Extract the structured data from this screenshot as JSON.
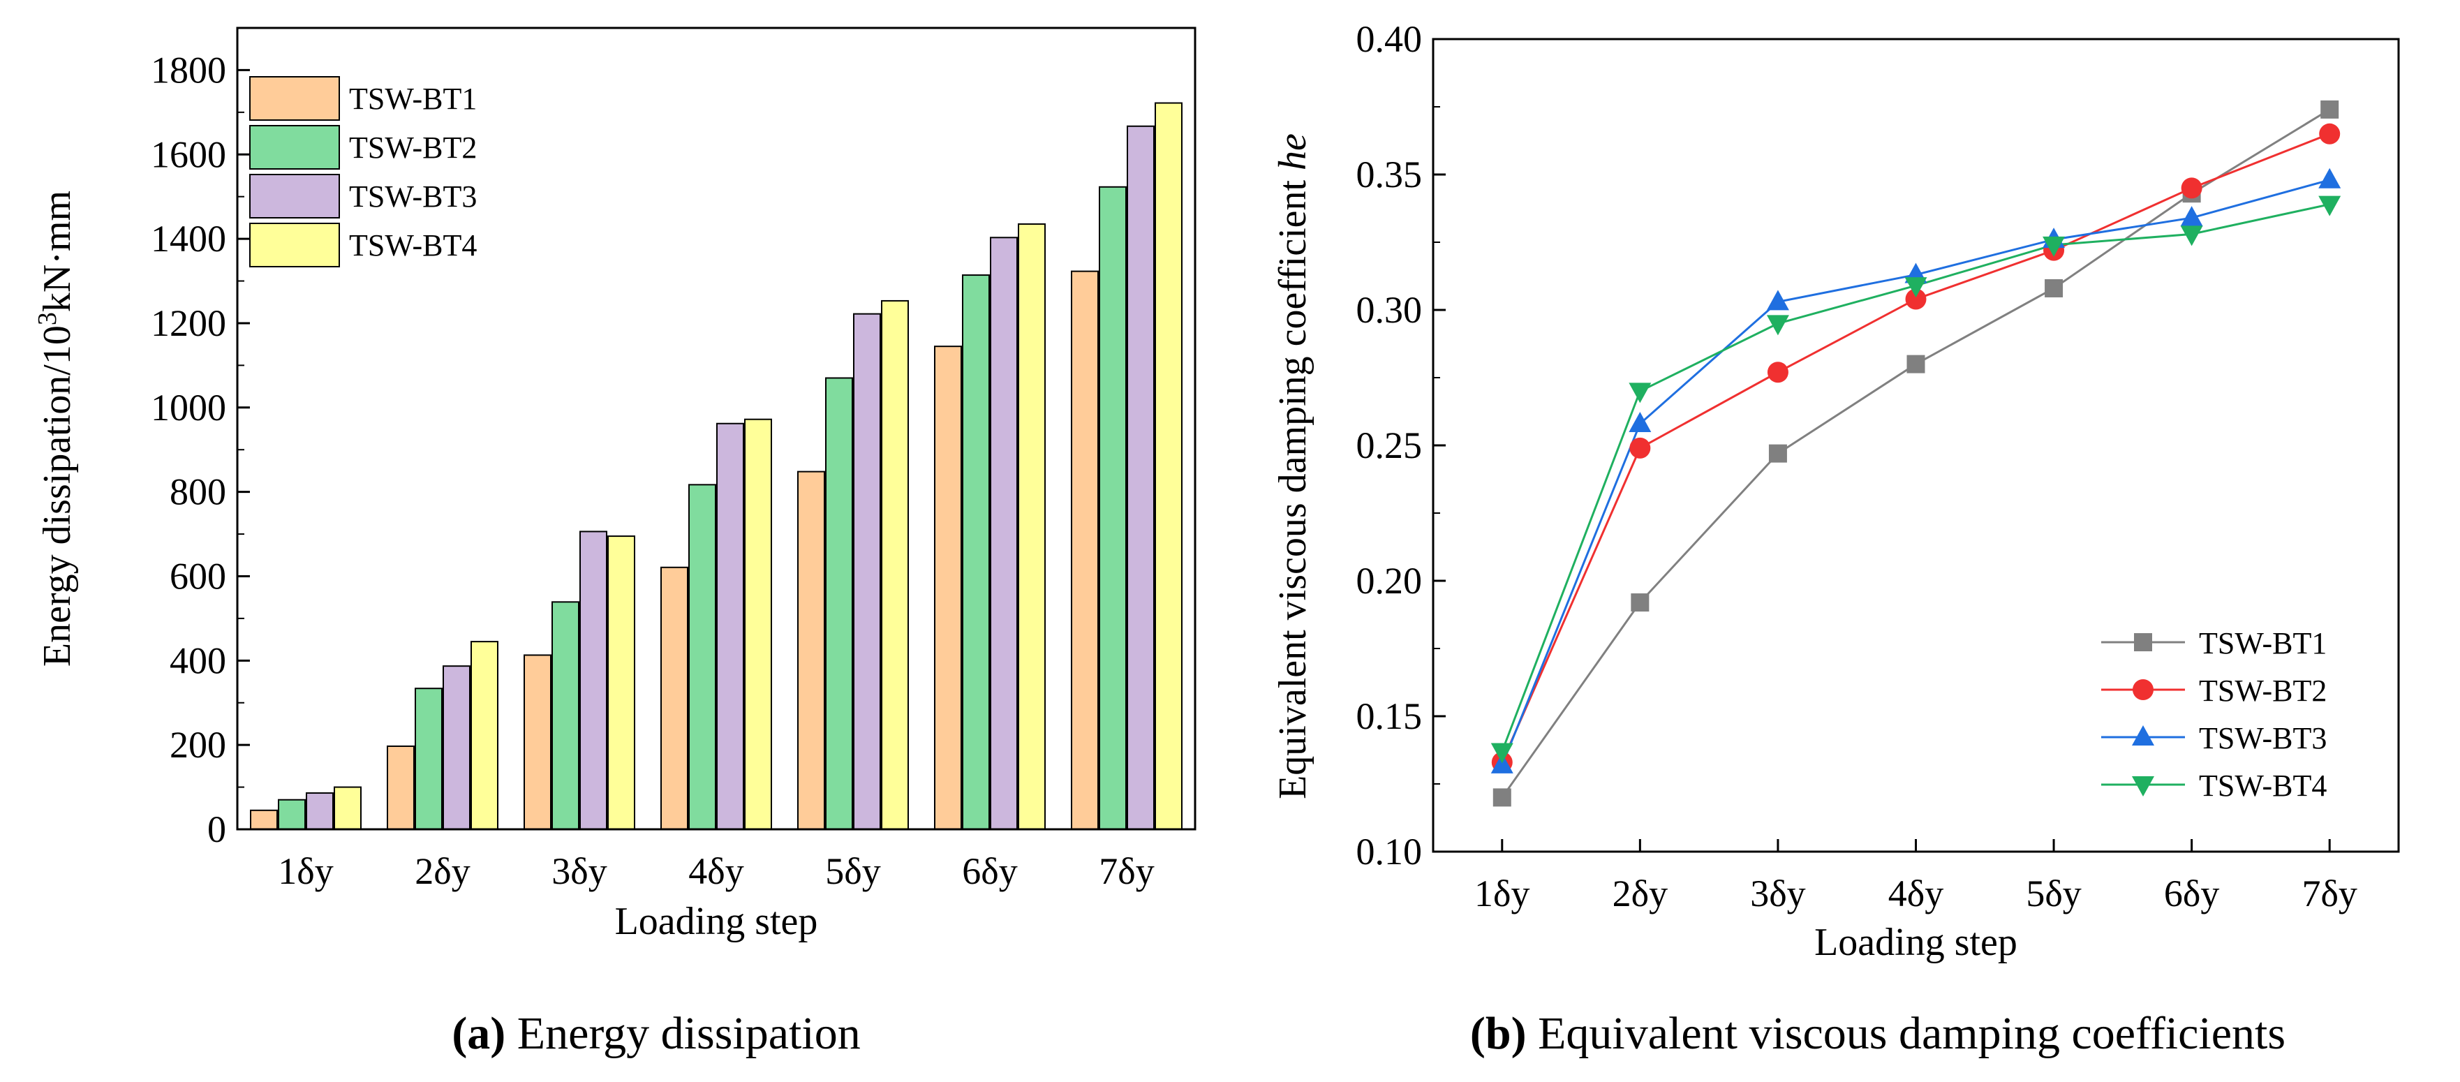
{
  "chart_data": [
    {
      "type": "bar",
      "title": "",
      "xlabel": "Loading step",
      "ylabel_prefix": "Energy dissipation/10",
      "ylabel_sup": "3",
      "ylabel_suffix": "kN·mm",
      "ylim": [
        0,
        1900
      ],
      "yticks": [
        0,
        200,
        400,
        600,
        800,
        1000,
        1200,
        1400,
        1600,
        1800
      ],
      "categories": [
        "1δy",
        "2δy",
        "3δy",
        "4δy",
        "5δy",
        "6δy",
        "7δy"
      ],
      "legend_position": "top-left",
      "series": [
        {
          "name": "TSW-BT1",
          "color": "#FFCC99",
          "values": [
            45,
            197,
            413,
            621,
            848,
            1145,
            1323
          ]
        },
        {
          "name": "TSW-BT2",
          "color": "#80DC9E",
          "values": [
            70,
            334,
            539,
            817,
            1070,
            1314,
            1523
          ]
        },
        {
          "name": "TSW-BT3",
          "color": "#CCB7DD",
          "values": [
            86,
            387,
            706,
            962,
            1222,
            1403,
            1667
          ]
        },
        {
          "name": "TSW-BT4",
          "color": "#FFFF99",
          "values": [
            100,
            445,
            695,
            972,
            1253,
            1435,
            1722
          ]
        }
      ],
      "caption_label": "(a)",
      "caption_text": " Energy dissipation"
    },
    {
      "type": "line",
      "title": "",
      "xlabel": "Loading step",
      "ylabel": "Equivalent viscous damping coefficient ",
      "ylabel_italic": "he",
      "ylim": [
        0.1,
        0.4
      ],
      "yticks": [
        "0.10",
        "0.15",
        "0.20",
        "0.25",
        "0.30",
        "0.35",
        "0.40"
      ],
      "categories": [
        "1δy",
        "2δy",
        "3δy",
        "4δy",
        "5δy",
        "6δy",
        "7δy"
      ],
      "legend_position": "bottom-right",
      "series": [
        {
          "name": "TSW-BT1",
          "color": "#808080",
          "marker": "square",
          "values": [
            0.12,
            0.192,
            0.247,
            0.28,
            0.308,
            0.343,
            0.374
          ]
        },
        {
          "name": "TSW-BT2",
          "color": "#F03030",
          "marker": "circle",
          "values": [
            0.133,
            0.249,
            0.277,
            0.304,
            0.322,
            0.345,
            0.365
          ]
        },
        {
          "name": "TSW-BT3",
          "color": "#1F6FE0",
          "marker": "triangle-up",
          "values": [
            0.132,
            0.258,
            0.303,
            0.313,
            0.326,
            0.334,
            0.348
          ]
        },
        {
          "name": "TSW-BT4",
          "color": "#1FB060",
          "marker": "triangle-down",
          "values": [
            0.137,
            0.27,
            0.295,
            0.309,
            0.324,
            0.328,
            0.339
          ]
        }
      ],
      "caption_label": "(b)",
      "caption_text": " Equivalent viscous damping coefficients"
    }
  ]
}
